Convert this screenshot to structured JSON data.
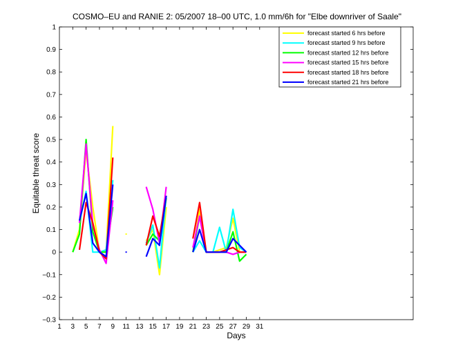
{
  "chart_data": {
    "type": "line",
    "title": "COSMO–EU and RANIE 2: 05/2007 18–00 UTC, 1.0 mm/6h for \"Elbe downriver of Saale\"",
    "xlabel": "Days",
    "ylabel": "Equitable threat score",
    "xlim": [
      1,
      54
    ],
    "ylim": [
      -0.3,
      1
    ],
    "xticks": [
      1,
      3,
      5,
      7,
      9,
      11,
      13,
      15,
      17,
      19,
      21,
      23,
      25,
      27,
      29,
      31
    ],
    "yticks": [
      -0.3,
      -0.2,
      -0.1,
      0,
      0.1,
      0.2,
      0.3,
      0.4,
      0.5,
      0.6,
      0.7,
      0.8,
      0.9,
      1
    ],
    "ytick_labels": [
      "−0.3",
      "−0.2",
      "−0.1",
      "0",
      "0.1",
      "0.2",
      "0.3",
      "0.4",
      "0.5",
      "0.6",
      "0.7",
      "0.8",
      "0.9",
      "1"
    ],
    "grid": false,
    "legend_position": "top-right",
    "series": [
      {
        "name": "forecast started 6 hrs before",
        "color": "#ffff00",
        "segments": [
          [
            [
              3,
              0
            ],
            [
              4,
              0.1
            ],
            [
              5,
              0.45
            ],
            [
              6,
              0.2
            ],
            [
              7,
              0
            ],
            [
              8,
              0
            ],
            [
              9,
              0.56
            ]
          ],
          [
            [
              11,
              0.08
            ]
          ],
          [
            [
              14,
              0.05
            ],
            [
              15,
              0.1
            ],
            [
              16,
              -0.1
            ],
            [
              17,
              0.2
            ]
          ],
          [
            [
              21,
              0
            ],
            [
              22,
              0.19
            ],
            [
              23,
              0
            ],
            [
              24,
              0
            ],
            [
              25,
              0.01
            ],
            [
              26,
              0.02
            ],
            [
              27,
              0.15
            ],
            [
              28,
              0
            ],
            [
              29,
              0
            ]
          ]
        ]
      },
      {
        "name": "forecast started 9 hrs before",
        "color": "#00ffff",
        "segments": [
          [
            [
              4,
              0.13
            ],
            [
              5,
              0.27
            ],
            [
              6,
              0
            ],
            [
              7,
              0
            ],
            [
              8,
              0.01
            ],
            [
              9,
              0.32
            ]
          ],
          [
            [
              14,
              0.04
            ],
            [
              15,
              0.12
            ],
            [
              16,
              -0.07
            ],
            [
              17,
              0.25
            ]
          ],
          [
            [
              21,
              0
            ],
            [
              22,
              0.05
            ],
            [
              23,
              0
            ],
            [
              24,
              0
            ],
            [
              25,
              0.11
            ],
            [
              26,
              0
            ],
            [
              27,
              0.19
            ],
            [
              28,
              0.02
            ],
            [
              29,
              0
            ]
          ]
        ]
      },
      {
        "name": "forecast started 12 hrs before",
        "color": "#00ff00",
        "segments": [
          [
            [
              3,
              0
            ],
            [
              4,
              0.08
            ],
            [
              5,
              0.5
            ],
            [
              6,
              0.09
            ],
            [
              7,
              0
            ],
            [
              8,
              0
            ],
            [
              9,
              0.2
            ]
          ],
          [
            [
              14,
              0.03
            ],
            [
              15,
              0.08
            ],
            [
              16,
              0.05
            ],
            [
              17,
              0.24
            ]
          ],
          [
            [
              21,
              0
            ],
            [
              22,
              0.16
            ],
            [
              23,
              0
            ],
            [
              24,
              0
            ],
            [
              25,
              0
            ],
            [
              26,
              0
            ],
            [
              27,
              0.09
            ],
            [
              28,
              -0.04
            ],
            [
              29,
              -0.01
            ]
          ]
        ]
      },
      {
        "name": "forecast started 15 hrs before",
        "color": "#ff00ff",
        "segments": [
          [
            [
              4,
              0.13
            ],
            [
              5,
              0.48
            ],
            [
              6,
              0.12
            ],
            [
              7,
              0.01
            ],
            [
              8,
              -0.05
            ],
            [
              9,
              0.23
            ]
          ],
          [
            [
              14,
              0.29
            ],
            [
              15,
              0.19
            ],
            [
              16,
              0.04
            ],
            [
              17,
              0.29
            ]
          ],
          [
            [
              21,
              0.02
            ],
            [
              22,
              0.16
            ],
            [
              23,
              0
            ],
            [
              24,
              0
            ],
            [
              25,
              0
            ],
            [
              26,
              0
            ],
            [
              27,
              -0.01
            ],
            [
              28,
              0
            ],
            [
              29,
              0
            ]
          ]
        ]
      },
      {
        "name": "forecast started 18 hrs before",
        "color": "#ff0000",
        "segments": [
          [
            [
              4,
              0.01
            ],
            [
              5,
              0.22
            ],
            [
              6,
              0.13
            ],
            [
              7,
              0
            ],
            [
              8,
              -0.03
            ],
            [
              9,
              0.42
            ]
          ],
          [
            [
              14,
              0.03
            ],
            [
              15,
              0.16
            ],
            [
              16,
              0.07
            ],
            [
              17,
              0.25
            ]
          ],
          [
            [
              21,
              0.06
            ],
            [
              22,
              0.22
            ],
            [
              23,
              0
            ],
            [
              24,
              0
            ],
            [
              25,
              0
            ],
            [
              26,
              0.01
            ],
            [
              27,
              0.02
            ],
            [
              28,
              0
            ],
            [
              29,
              0
            ]
          ]
        ]
      },
      {
        "name": "forecast started 21 hrs before",
        "color": "#0000ff",
        "segments": [
          [
            [
              4,
              0.14
            ],
            [
              5,
              0.26
            ],
            [
              6,
              0.04
            ],
            [
              7,
              0
            ],
            [
              8,
              -0.02
            ],
            [
              9,
              0.3
            ]
          ],
          [
            [
              11,
              0
            ]
          ],
          [
            [
              14,
              -0.02
            ],
            [
              15,
              0.06
            ],
            [
              16,
              0.03
            ],
            [
              17,
              0.25
            ]
          ],
          [
            [
              21,
              0
            ],
            [
              22,
              0.1
            ],
            [
              23,
              0
            ],
            [
              24,
              0
            ],
            [
              25,
              0
            ],
            [
              26,
              0
            ],
            [
              27,
              0.06
            ],
            [
              28,
              0.03
            ],
            [
              29,
              0
            ]
          ]
        ]
      }
    ]
  }
}
